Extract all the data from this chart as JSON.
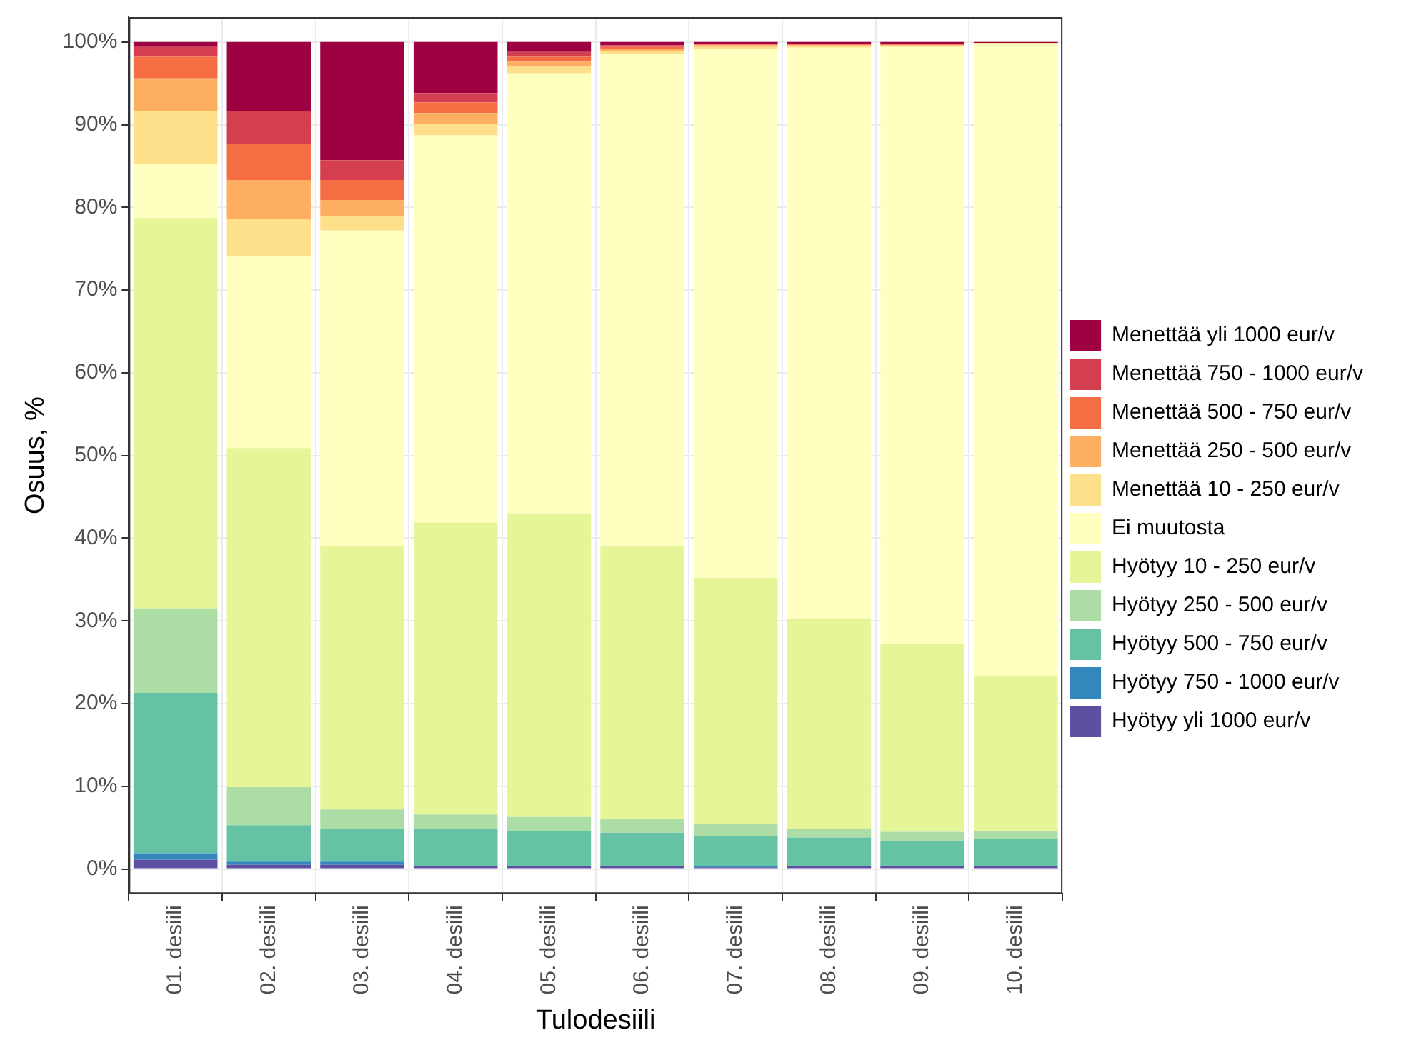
{
  "chart_data": {
    "type": "bar",
    "stacked": true,
    "xlabel": "Tulodesiili",
    "ylabel": "Osuus, %",
    "categories": [
      "01. desiili",
      "02. desiili",
      "03. desiili",
      "04. desiili",
      "05. desiili",
      "06. desiili",
      "07. desiili",
      "08. desiili",
      "09. desiili",
      "10. desiili"
    ],
    "ylim": [
      -3,
      103
    ],
    "yticks": [
      {
        "value": 0,
        "label": "0%"
      },
      {
        "value": 10,
        "label": "10%"
      },
      {
        "value": 20,
        "label": "20%"
      },
      {
        "value": 30,
        "label": "30%"
      },
      {
        "value": 40,
        "label": "40%"
      },
      {
        "value": 50,
        "label": "50%"
      },
      {
        "value": 60,
        "label": "60%"
      },
      {
        "value": 70,
        "label": "70%"
      },
      {
        "value": 80,
        "label": "80%"
      },
      {
        "value": 90,
        "label": "90%"
      },
      {
        "value": 100,
        "label": "100%"
      }
    ],
    "grid": true,
    "legend": "right",
    "series": [
      {
        "name": "Hyötyy yli 1000 eur/v",
        "color": "#5e4fa2",
        "values": [
          1.1,
          0.5,
          0.5,
          0.3,
          0.3,
          0.3,
          0.2,
          0.3,
          0.3,
          0.3
        ]
      },
      {
        "name": "Hyötyy 750 - 1000 eur/v",
        "color": "#3288bd",
        "values": [
          0.8,
          0.4,
          0.4,
          0.1,
          0.1,
          0.1,
          0.2,
          0.1,
          0.1,
          0.1
        ]
      },
      {
        "name": "Hyötyy 500 - 750 eur/v",
        "color": "#66c2a5",
        "values": [
          19.4,
          4.4,
          3.9,
          4.4,
          4.2,
          4.0,
          3.6,
          3.4,
          3.0,
          3.2
        ]
      },
      {
        "name": "Hyötyy 250 - 500 eur/v",
        "color": "#abdda4",
        "values": [
          10.2,
          4.6,
          2.4,
          1.8,
          1.7,
          1.7,
          1.5,
          1.0,
          1.1,
          1.0
        ]
      },
      {
        "name": "Hyötyy 10 - 250 eur/v",
        "color": "#e6f598",
        "values": [
          47.2,
          41.0,
          31.8,
          35.3,
          36.7,
          32.9,
          29.7,
          25.5,
          22.7,
          18.8
        ]
      },
      {
        "name": "Ei muutosta",
        "color": "#ffffbf",
        "values": [
          6.6,
          23.2,
          38.2,
          46.8,
          53.2,
          59.5,
          63.9,
          69.0,
          72.2,
          76.4
        ]
      },
      {
        "name": "Menettää 10 - 250 eur/v",
        "color": "#fee08b",
        "values": [
          6.3,
          4.5,
          1.8,
          1.4,
          0.8,
          0.4,
          0.3,
          0.2,
          0.1,
          0.1
        ]
      },
      {
        "name": "Menettää 250 - 500 eur/v",
        "color": "#fdae61",
        "values": [
          4.0,
          4.7,
          1.9,
          1.3,
          0.6,
          0.3,
          0.2,
          0.1,
          0.1,
          0
        ]
      },
      {
        "name": "Menettää 500 - 750 eur/v",
        "color": "#f46d43",
        "values": [
          2.6,
          4.4,
          2.4,
          1.3,
          0.6,
          0.2,
          0.1,
          0.1,
          0.1,
          0
        ]
      },
      {
        "name": "Menettää 750 - 1000 eur/v",
        "color": "#d53e4f",
        "values": [
          1.2,
          3.9,
          2.4,
          1.1,
          0.6,
          0.2,
          0.1,
          0.1,
          0.1,
          0
        ]
      },
      {
        "name": "Menettää yli 1000 eur/v",
        "color": "#9e0142",
        "values": [
          0.6,
          8.4,
          14.3,
          6.2,
          1.2,
          0.4,
          0.2,
          0.2,
          0.2,
          0.1
        ]
      }
    ]
  }
}
